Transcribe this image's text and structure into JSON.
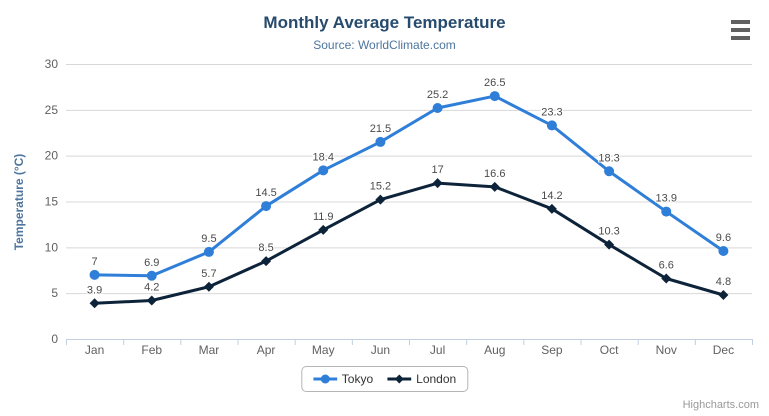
{
  "chart_data": {
    "type": "line",
    "title": "Monthly Average Temperature",
    "subtitle": "Source: WorldClimate.com",
    "xlabel": "",
    "ylabel": "Temperature (°C)",
    "ylim": [
      0,
      30
    ],
    "ytick_interval": 5,
    "grid": true,
    "legend_position": "bottom",
    "data_labels": true,
    "categories": [
      "Jan",
      "Feb",
      "Mar",
      "Apr",
      "May",
      "Jun",
      "Jul",
      "Aug",
      "Sep",
      "Oct",
      "Nov",
      "Dec"
    ],
    "series": [
      {
        "name": "Tokyo",
        "color": "#2f7ed8",
        "marker": "circle",
        "values": [
          7,
          6.9,
          9.5,
          14.5,
          18.4,
          21.5,
          25.2,
          26.5,
          23.3,
          18.3,
          13.9,
          9.6
        ]
      },
      {
        "name": "London",
        "color": "#0d233a",
        "marker": "diamond",
        "values": [
          3.9,
          4.2,
          5.7,
          8.5,
          11.9,
          15.2,
          17,
          16.6,
          14.2,
          10.3,
          6.6,
          4.8
        ]
      }
    ]
  },
  "credits": {
    "label": "Highcharts.com"
  },
  "icons": {
    "menu": "hamburger"
  },
  "theme": {
    "title_color": "#274b6d",
    "subtitle_color": "#4d759e",
    "axis_label_color": "#606060",
    "data_label_color": "#4a4a4a",
    "grid_color": "#d8d8d8",
    "axis_line_color": "#c0d0e0",
    "legend_text_color": "#333333",
    "credits_color": "#999999"
  }
}
